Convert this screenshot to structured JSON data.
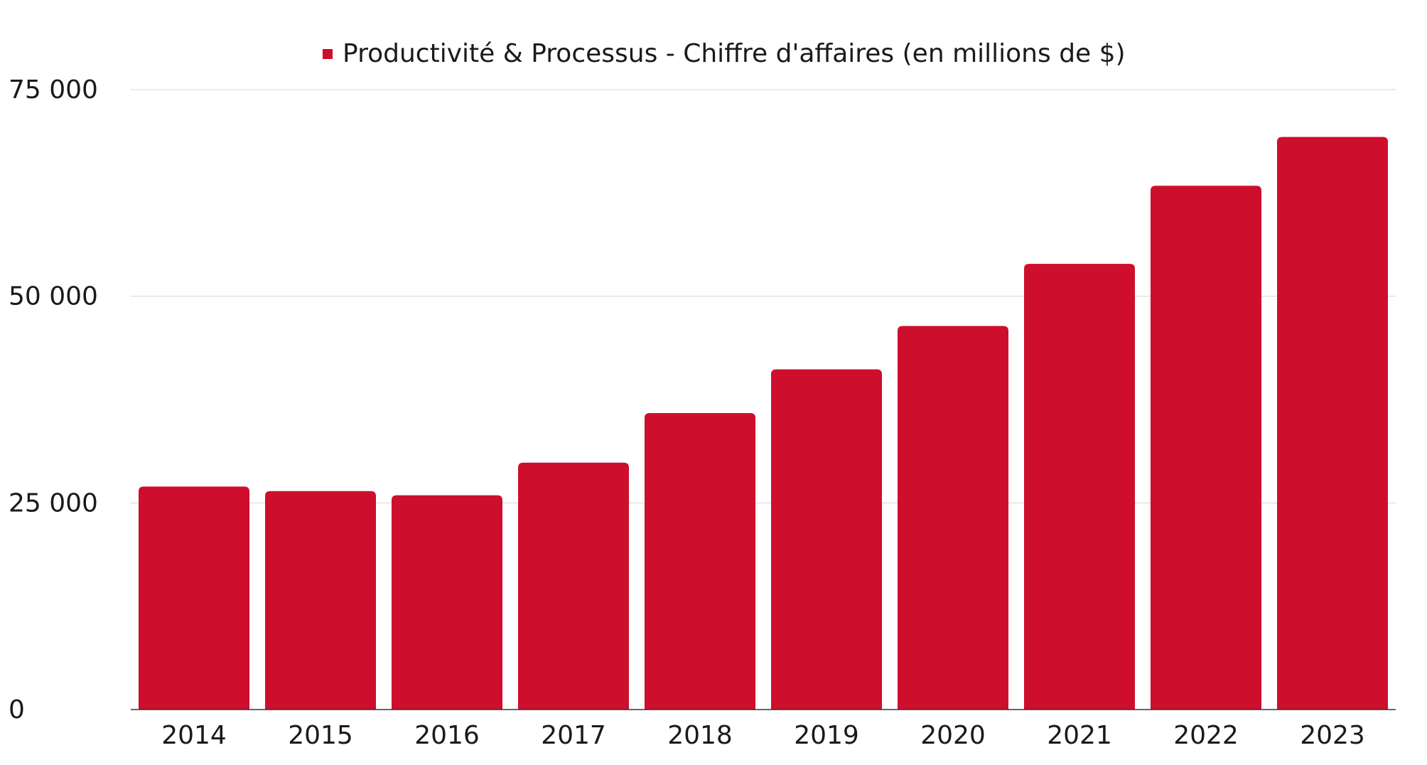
{
  "chart_data": {
    "type": "bar",
    "categories": [
      "2014",
      "2015",
      "2016",
      "2017",
      "2018",
      "2019",
      "2020",
      "2021",
      "2022",
      "2023"
    ],
    "series": [
      {
        "name": "Productivité & Processus - Chiffre d'affaires (en millions de $)",
        "values": [
          26976,
          26430,
          25920,
          29870,
          35865,
          41160,
          46398,
          53915,
          63364,
          69274
        ],
        "color": "#ce0e2d"
      }
    ],
    "ylim": [
      0,
      75000
    ],
    "yticks": [
      0,
      25000,
      50000,
      75000
    ],
    "ytick_labels": [
      "0",
      "25 000",
      "50 000",
      "75 000"
    ],
    "grid": true,
    "legend_position": "top-center",
    "title": "",
    "xlabel": "",
    "ylabel": ""
  }
}
